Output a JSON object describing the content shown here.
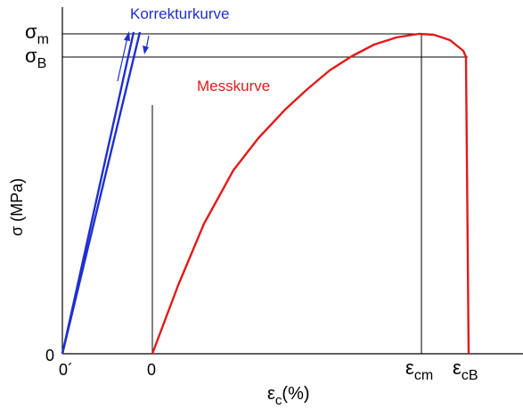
{
  "diagram": {
    "y_axis_label": "σ (MPa)",
    "x_axis_label_symbol": "ε",
    "x_axis_label_subscript": "c",
    "x_axis_label_suffix": "(%)",
    "y_tick_zero": "0",
    "y_tick_sigma_m_symbol": "σ",
    "y_tick_sigma_m_subscript": "m",
    "y_tick_sigma_b_symbol": "σ",
    "y_tick_sigma_b_subscript": "B",
    "x_tick_zero_prime": "0´",
    "x_tick_zero": "0",
    "x_tick_eps_cm_symbol": "ε",
    "x_tick_eps_cm_subscript": "cm",
    "x_tick_eps_cb_symbol": "ε",
    "x_tick_eps_cb_subscript": "cB",
    "korrektur_label": "Korrekturkurve",
    "mess_label": "Messkurve",
    "colors": {
      "korrektur": "#1f2fd0",
      "mess": "#e11a1a",
      "axes": "#000000"
    }
  }
}
